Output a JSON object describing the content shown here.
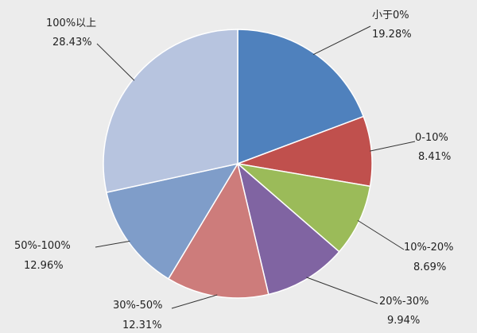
{
  "chart_data": {
    "type": "pie",
    "categories": [
      "小于0%",
      "0-10%",
      "10%-20%",
      "20%-30%",
      "30%-50%",
      "50%-100%",
      "100%以上"
    ],
    "values": [
      19.28,
      8.41,
      8.69,
      9.94,
      12.31,
      12.96,
      28.43
    ],
    "value_labels": [
      "19.28%",
      "8.41%",
      "8.69%",
      "9.94%",
      "12.31%",
      "12.96%",
      "28.43%"
    ],
    "colors": [
      "#4f81bd",
      "#c0504d",
      "#9bbb59",
      "#8064a2",
      "#cd7c7b",
      "#7f9dc9",
      "#b7c4df"
    ],
    "start_angle": "top",
    "direction": "clockwise",
    "legend": "none",
    "data_labels": "outside with leader lines"
  }
}
